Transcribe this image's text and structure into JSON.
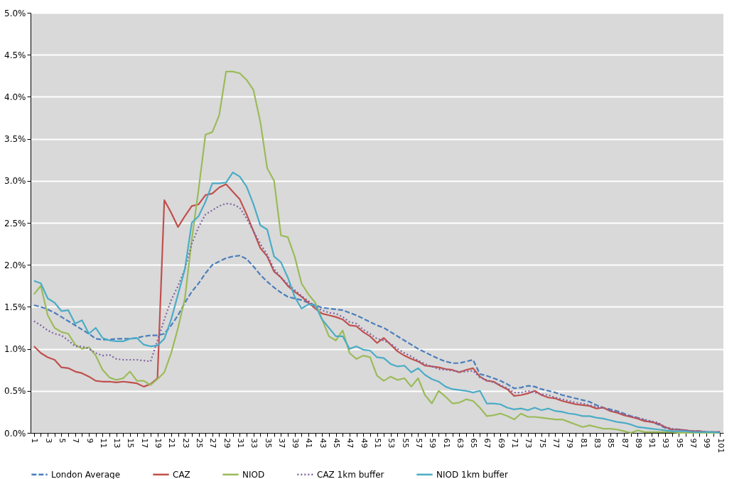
{
  "chart_data": {
    "type": "line",
    "categories": [
      "1",
      null,
      "3",
      null,
      "5",
      null,
      "7",
      null,
      "9",
      null,
      "11",
      null,
      "13",
      null,
      "15",
      null,
      "17",
      null,
      "19",
      null,
      "21",
      null,
      "23",
      null,
      "25",
      null,
      "27",
      null,
      "29",
      null,
      "31",
      null,
      "33",
      null,
      "35",
      null,
      "37",
      null,
      "39",
      null,
      "41",
      null,
      "43",
      null,
      "45",
      null,
      "47",
      null,
      "49",
      null,
      "51",
      null,
      "53",
      null,
      "55",
      null,
      "57",
      null,
      "59",
      null,
      "61",
      null,
      "63",
      null,
      "65",
      null,
      "67",
      null,
      "69",
      null,
      "71",
      null,
      "73",
      null,
      "75",
      null,
      "77",
      null,
      "79",
      null,
      "81",
      null,
      "83",
      null,
      "85",
      null,
      "87",
      null,
      "89",
      null,
      "91",
      null,
      "93",
      null,
      "95",
      null,
      "97",
      null,
      "99",
      null,
      "101"
    ],
    "series": [
      {
        "name": "London Average",
        "color": "#4a7ebb",
        "line_style": "dashed",
        "values": [
          1.52,
          1.5,
          1.47,
          1.43,
          1.38,
          1.33,
          1.28,
          1.23,
          1.18,
          1.12,
          1.11,
          1.11,
          1.12,
          1.12,
          1.12,
          1.13,
          1.15,
          1.16,
          1.16,
          1.18,
          1.28,
          1.4,
          1.55,
          1.68,
          1.78,
          1.9,
          2.0,
          2.04,
          2.08,
          2.1,
          2.11,
          2.07,
          1.98,
          1.88,
          1.8,
          1.73,
          1.67,
          1.62,
          1.6,
          1.58,
          1.55,
          1.52,
          1.49,
          1.48,
          1.47,
          1.46,
          1.43,
          1.4,
          1.36,
          1.32,
          1.28,
          1.25,
          1.2,
          1.15,
          1.1,
          1.05,
          1.0,
          0.96,
          0.92,
          0.88,
          0.85,
          0.83,
          0.83,
          0.85,
          0.87,
          0.7,
          0.68,
          0.65,
          0.62,
          0.58,
          0.53,
          0.54,
          0.56,
          0.55,
          0.52,
          0.5,
          0.48,
          0.45,
          0.43,
          0.41,
          0.39,
          0.37,
          0.33,
          0.3,
          0.28,
          0.26,
          0.23,
          0.2,
          0.18,
          0.15,
          0.13,
          0.1,
          0.06,
          0.04,
          0.04,
          0.03,
          0.02,
          0.02,
          0.01,
          0.01,
          0.01
        ]
      },
      {
        "name": "CAZ",
        "color": "#c0504d",
        "line_style": "solid",
        "values": [
          1.03,
          0.95,
          0.9,
          0.87,
          0.78,
          0.77,
          0.73,
          0.71,
          0.67,
          0.62,
          0.61,
          0.61,
          0.6,
          0.61,
          0.6,
          0.59,
          0.55,
          0.58,
          0.65,
          2.77,
          2.62,
          2.45,
          2.58,
          2.7,
          2.72,
          2.83,
          2.85,
          2.92,
          2.96,
          2.87,
          2.78,
          2.6,
          2.4,
          2.2,
          2.1,
          1.92,
          1.85,
          1.75,
          1.68,
          1.62,
          1.55,
          1.48,
          1.42,
          1.4,
          1.38,
          1.35,
          1.28,
          1.27,
          1.2,
          1.15,
          1.07,
          1.13,
          1.05,
          0.97,
          0.92,
          0.88,
          0.85,
          0.8,
          0.79,
          0.78,
          0.76,
          0.75,
          0.72,
          0.75,
          0.77,
          0.67,
          0.62,
          0.61,
          0.56,
          0.52,
          0.44,
          0.45,
          0.47,
          0.5,
          0.45,
          0.42,
          0.41,
          0.38,
          0.36,
          0.34,
          0.33,
          0.32,
          0.29,
          0.3,
          0.26,
          0.24,
          0.21,
          0.19,
          0.17,
          0.14,
          0.13,
          0.11,
          0.07,
          0.04,
          0.04,
          0.03,
          0.02,
          0.02,
          0.01,
          0.01,
          0.01
        ]
      },
      {
        "name": "NIOD",
        "color": "#9bbb59",
        "line_style": "solid",
        "values": [
          1.65,
          1.75,
          1.4,
          1.25,
          1.2,
          1.18,
          1.05,
          1.0,
          1.02,
          0.92,
          0.75,
          0.66,
          0.63,
          0.65,
          0.73,
          0.62,
          0.62,
          0.57,
          0.64,
          0.72,
          0.95,
          1.25,
          1.6,
          2.3,
          2.9,
          3.55,
          3.58,
          3.78,
          4.3,
          4.3,
          4.28,
          4.2,
          4.08,
          3.7,
          3.15,
          3.0,
          2.35,
          2.33,
          2.1,
          1.78,
          1.65,
          1.55,
          1.35,
          1.15,
          1.1,
          1.22,
          0.95,
          0.88,
          0.92,
          0.9,
          0.68,
          0.62,
          0.67,
          0.63,
          0.65,
          0.55,
          0.65,
          0.45,
          0.35,
          0.5,
          0.43,
          0.35,
          0.36,
          0.4,
          0.38,
          0.3,
          0.2,
          0.21,
          0.23,
          0.2,
          0.16,
          0.23,
          0.19,
          0.19,
          0.18,
          0.17,
          0.16,
          0.16,
          0.13,
          0.1,
          0.07,
          0.09,
          0.07,
          0.05,
          0.05,
          0.04,
          0.02,
          0.0,
          0.03,
          0.01,
          0.01,
          0.01,
          0.01,
          0.01,
          0.0,
          0.0,
          0.0,
          0.0,
          0.0,
          0.0,
          0.0
        ]
      },
      {
        "name": "CAZ 1km buffer",
        "color": "#8064a2",
        "line_style": "dotted",
        "values": [
          1.33,
          1.28,
          1.22,
          1.18,
          1.16,
          1.1,
          1.03,
          1.03,
          1.0,
          0.95,
          0.92,
          0.93,
          0.88,
          0.87,
          0.87,
          0.87,
          0.86,
          0.85,
          1.1,
          1.35,
          1.58,
          1.75,
          1.95,
          2.25,
          2.45,
          2.6,
          2.65,
          2.7,
          2.73,
          2.72,
          2.68,
          2.55,
          2.4,
          2.25,
          2.12,
          1.95,
          1.85,
          1.77,
          1.7,
          1.63,
          1.57,
          1.5,
          1.46,
          1.43,
          1.42,
          1.38,
          1.32,
          1.3,
          1.23,
          1.18,
          1.12,
          1.1,
          1.06,
          1.0,
          0.95,
          0.91,
          0.86,
          0.82,
          0.79,
          0.76,
          0.75,
          0.74,
          0.73,
          0.73,
          0.74,
          0.66,
          0.63,
          0.6,
          0.57,
          0.53,
          0.48,
          0.48,
          0.5,
          0.48,
          0.46,
          0.45,
          0.42,
          0.4,
          0.38,
          0.36,
          0.35,
          0.33,
          0.31,
          0.3,
          0.27,
          0.25,
          0.22,
          0.2,
          0.18,
          0.16,
          0.14,
          0.12,
          0.07,
          0.05,
          0.04,
          0.03,
          0.02,
          0.02,
          0.01,
          0.01,
          0.01
        ]
      },
      {
        "name": "NIOD 1km buffer",
        "color": "#4bacc6",
        "line_style": "solid",
        "values": [
          1.81,
          1.78,
          1.6,
          1.55,
          1.45,
          1.46,
          1.3,
          1.34,
          1.18,
          1.25,
          1.13,
          1.1,
          1.09,
          1.09,
          1.12,
          1.13,
          1.05,
          1.03,
          1.04,
          1.12,
          1.35,
          1.65,
          1.95,
          2.5,
          2.58,
          2.75,
          2.97,
          2.97,
          2.98,
          3.1,
          3.05,
          2.93,
          2.72,
          2.47,
          2.42,
          2.1,
          2.03,
          1.85,
          1.62,
          1.48,
          1.53,
          1.52,
          1.35,
          1.25,
          1.15,
          1.15,
          1.0,
          1.03,
          0.99,
          0.98,
          0.9,
          0.89,
          0.82,
          0.79,
          0.8,
          0.72,
          0.77,
          0.69,
          0.64,
          0.61,
          0.55,
          0.52,
          0.51,
          0.5,
          0.48,
          0.5,
          0.35,
          0.35,
          0.34,
          0.3,
          0.28,
          0.29,
          0.27,
          0.3,
          0.27,
          0.29,
          0.26,
          0.25,
          0.23,
          0.22,
          0.2,
          0.2,
          0.18,
          0.17,
          0.15,
          0.13,
          0.12,
          0.1,
          0.07,
          0.06,
          0.05,
          0.04,
          0.03,
          0.02,
          0.02,
          0.02,
          0.01,
          0.01,
          0.01,
          0.01,
          0.0
        ]
      }
    ],
    "ylim": [
      0,
      5
    ],
    "yticks": [
      {
        "value": 0,
        "label": "0.0%"
      },
      {
        "value": 0.5,
        "label": "0.5%"
      },
      {
        "value": 1,
        "label": "1.0%"
      },
      {
        "value": 1.5,
        "label": "1.5%"
      },
      {
        "value": 2,
        "label": "2.0%"
      },
      {
        "value": 2.5,
        "label": "2.5%"
      },
      {
        "value": 3,
        "label": "3.0%"
      },
      {
        "value": 3.5,
        "label": "3.5%"
      },
      {
        "value": 4,
        "label": "4.0%"
      },
      {
        "value": 4.5,
        "label": "4.5%"
      },
      {
        "value": 5,
        "label": "5.0%"
      }
    ],
    "grid": "y",
    "legend": "bottom",
    "marker": "none"
  }
}
